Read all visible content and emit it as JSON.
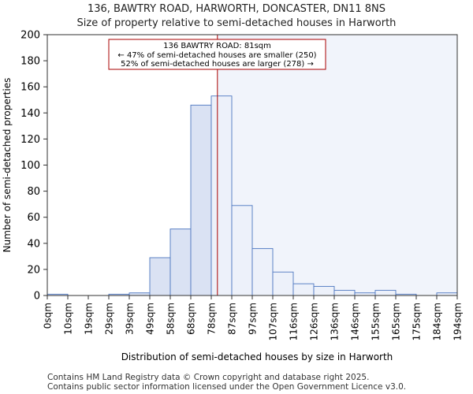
{
  "chart_data": {
    "type": "bar",
    "title": "136, BAWTRY ROAD, HARWORTH, DONCASTER, DN11 8NS",
    "subtitle": "Size of property relative to semi-detached houses in Harworth",
    "xlabel": "Distribution of semi-detached houses by size in Harworth",
    "ylabel": "Number of semi-detached properties",
    "ylim": [
      0,
      200
    ],
    "yticks": [
      0,
      20,
      40,
      60,
      80,
      100,
      120,
      140,
      160,
      180,
      200
    ],
    "tick_labels": [
      "0sqm",
      "10sqm",
      "19sqm",
      "29sqm",
      "39sqm",
      "49sqm",
      "58sqm",
      "68sqm",
      "78sqm",
      "87sqm",
      "97sqm",
      "107sqm",
      "116sqm",
      "126sqm",
      "136sqm",
      "146sqm",
      "155sqm",
      "165sqm",
      "175sqm",
      "184sqm",
      "194sqm"
    ],
    "values": [
      1,
      0,
      0,
      1,
      2,
      29,
      51,
      146,
      153,
      69,
      36,
      18,
      9,
      7,
      4,
      2,
      4,
      1,
      0,
      2
    ],
    "property_bin_position": 8.3,
    "annotation": {
      "line1": "136 BAWTRY ROAD: 81sqm",
      "line2": "← 47% of semi-detached houses are smaller (250)",
      "line3": "52% of semi-detached houses are larger (278) →"
    },
    "colors": {
      "bar_left": "#dae2f3",
      "bar_right": "#edf1fa",
      "bar_edge": "#4d77c0",
      "highlight_region": "#f1f4fb",
      "marker": "#aa0000"
    }
  },
  "footer": {
    "line1": "Contains HM Land Registry data © Crown copyright and database right 2025.",
    "line2": "Contains public sector information licensed under the Open Government Licence v3.0."
  }
}
